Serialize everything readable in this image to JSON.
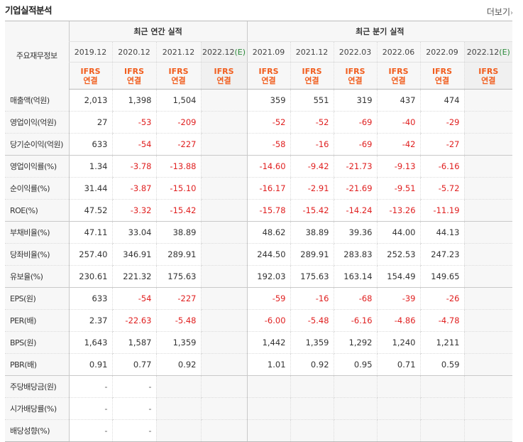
{
  "title": "기업실적분석",
  "more_label": "더보기",
  "more_icon": "chevron-right-icon",
  "header": {
    "row_label": "주요재무정보",
    "annual_group": "최근 연간 실적",
    "quarter_group": "최근 분기 실적",
    "annual_periods": [
      "2019.12",
      "2020.12",
      "2021.12",
      "2022.12"
    ],
    "annual_estimate_suffix": "(E)",
    "quarter_periods": [
      "2021.09",
      "2021.12",
      "2022.03",
      "2022.06",
      "2022.09",
      "2022.12"
    ],
    "quarter_estimate_suffix": "(E)",
    "accounting_top": "IFRS",
    "accounting_bottom": "연결"
  },
  "colors": {
    "negative": "#e01f1f",
    "ifrs": "#f15d1d",
    "estimate": "#2b8a3a"
  },
  "rows": [
    {
      "label": "매출액(억원)",
      "annual": [
        "2,013",
        "1,398",
        "1,504",
        ""
      ],
      "quarter": [
        "359",
        "551",
        "319",
        "437",
        "474",
        ""
      ]
    },
    {
      "label": "영업이익(억원)",
      "annual": [
        "27",
        "-53",
        "-209",
        ""
      ],
      "quarter": [
        "-52",
        "-52",
        "-69",
        "-40",
        "-29",
        ""
      ]
    },
    {
      "label": "당기순이익(억원)",
      "annual": [
        "633",
        "-54",
        "-227",
        ""
      ],
      "quarter": [
        "-58",
        "-16",
        "-69",
        "-42",
        "-27",
        ""
      ]
    },
    {
      "label": "영업이익률(%)",
      "annual": [
        "1.34",
        "-3.78",
        "-13.88",
        ""
      ],
      "quarter": [
        "-14.60",
        "-9.42",
        "-21.73",
        "-9.13",
        "-6.16",
        ""
      ]
    },
    {
      "label": "순이익률(%)",
      "annual": [
        "31.44",
        "-3.87",
        "-15.10",
        ""
      ],
      "quarter": [
        "-16.17",
        "-2.91",
        "-21.69",
        "-9.51",
        "-5.72",
        ""
      ]
    },
    {
      "label": "ROE(%)",
      "annual": [
        "47.52",
        "-3.32",
        "-15.42",
        ""
      ],
      "quarter": [
        "-15.78",
        "-15.42",
        "-14.24",
        "-13.26",
        "-11.19",
        ""
      ]
    },
    {
      "label": "부채비율(%)",
      "annual": [
        "47.11",
        "33.04",
        "38.89",
        ""
      ],
      "quarter": [
        "48.62",
        "38.89",
        "39.36",
        "44.00",
        "44.13",
        ""
      ]
    },
    {
      "label": "당좌비율(%)",
      "annual": [
        "257.40",
        "346.91",
        "289.91",
        ""
      ],
      "quarter": [
        "244.50",
        "289.91",
        "283.83",
        "252.53",
        "247.23",
        ""
      ]
    },
    {
      "label": "유보율(%)",
      "annual": [
        "230.61",
        "221.32",
        "175.63",
        ""
      ],
      "quarter": [
        "192.03",
        "175.63",
        "163.14",
        "154.49",
        "149.65",
        ""
      ]
    },
    {
      "label": "EPS(원)",
      "annual": [
        "633",
        "-54",
        "-227",
        ""
      ],
      "quarter": [
        "-59",
        "-16",
        "-68",
        "-39",
        "-26",
        ""
      ]
    },
    {
      "label": "PER(배)",
      "annual": [
        "2.37",
        "-22.63",
        "-5.48",
        ""
      ],
      "quarter": [
        "-6.00",
        "-5.48",
        "-6.16",
        "-4.86",
        "-4.78",
        ""
      ]
    },
    {
      "label": "BPS(원)",
      "annual": [
        "1,643",
        "1,587",
        "1,359",
        ""
      ],
      "quarter": [
        "1,442",
        "1,359",
        "1,292",
        "1,240",
        "1,211",
        ""
      ]
    },
    {
      "label": "PBR(배)",
      "annual": [
        "0.91",
        "0.77",
        "0.92",
        ""
      ],
      "quarter": [
        "1.01",
        "0.92",
        "0.95",
        "0.71",
        "0.59",
        ""
      ]
    },
    {
      "label": "주당배당금(원)",
      "annual": [
        "-",
        "-",
        "",
        ""
      ],
      "quarter": [
        "",
        "",
        "",
        "",
        "",
        ""
      ]
    },
    {
      "label": "시가배당률(%)",
      "annual": [
        "-",
        "-",
        "",
        ""
      ],
      "quarter": [
        "",
        "",
        "",
        "",
        "",
        ""
      ]
    },
    {
      "label": "배당성향(%)",
      "annual": [
        "-",
        "-",
        "",
        ""
      ],
      "quarter": [
        "",
        "",
        "",
        "",
        "",
        ""
      ]
    }
  ]
}
